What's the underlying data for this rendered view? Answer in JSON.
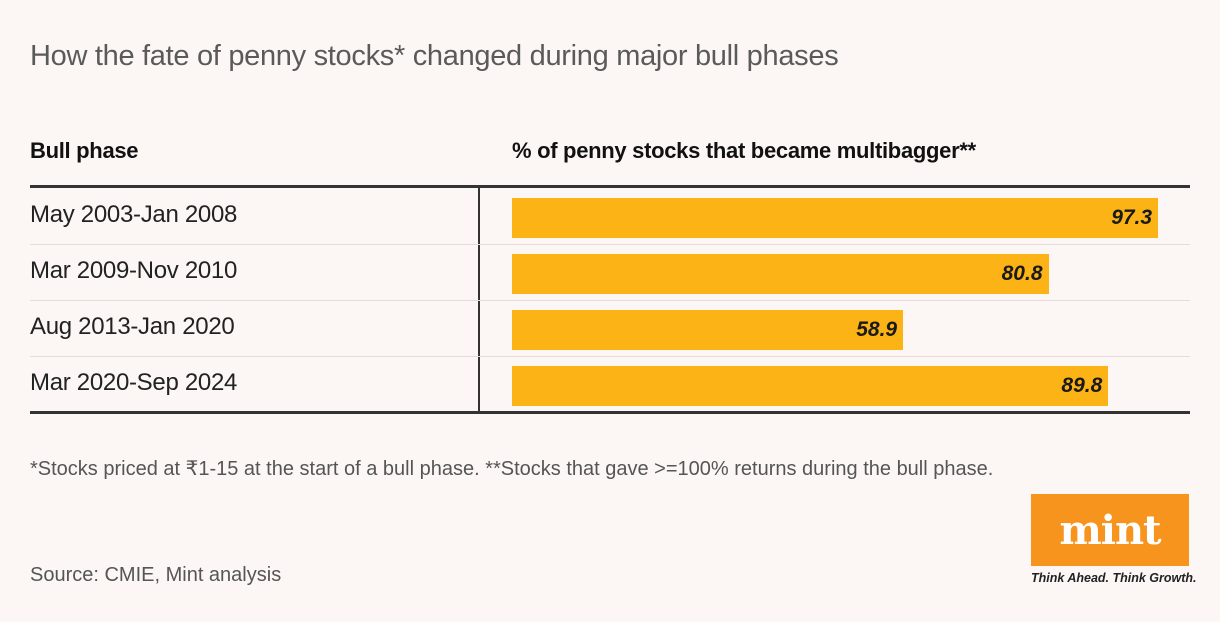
{
  "title": "How the fate of penny stocks* changed during major bull phases",
  "chart_data": {
    "type": "bar",
    "orientation": "horizontal",
    "title": "How the fate of penny stocks* changed during major bull phases",
    "category_header": "Bull phase",
    "value_header": "% of penny stocks that became multibagger**",
    "categories": [
      "May 2003-Jan 2008",
      "Mar 2009-Nov 2010",
      "Aug 2013-Jan 2020",
      "Mar 2020-Sep 2024"
    ],
    "values": [
      97.3,
      80.8,
      58.9,
      89.8
    ],
    "labels": [
      "97.3",
      "80.8",
      "58.9",
      "89.8"
    ],
    "xlim": [
      0,
      100
    ],
    "bar_color": "#fbb316"
  },
  "footnote": "*Stocks priced at ₹1-15 at the start of a bull phase. **Stocks that gave >=100% returns during the bull phase.",
  "source": "Source: CMIE, Mint analysis",
  "logo": {
    "word": "mint",
    "tagline": "Think Ahead. Think Growth.",
    "color": "#f7941d"
  }
}
